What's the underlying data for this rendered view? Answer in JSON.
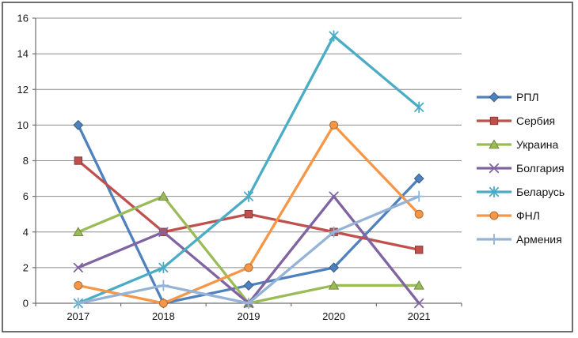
{
  "chart_data": {
    "type": "line",
    "categories": [
      "2017",
      "2018",
      "2019",
      "2020",
      "2021"
    ],
    "series": [
      {
        "name": "РПЛ",
        "values": [
          10,
          0,
          1,
          2,
          7
        ],
        "color": "#4F81BD",
        "marker": "diamond"
      },
      {
        "name": "Сербия",
        "values": [
          8,
          4,
          5,
          4,
          3
        ],
        "color": "#C0504D",
        "marker": "square"
      },
      {
        "name": "Украина",
        "values": [
          4,
          6,
          0,
          1,
          1
        ],
        "color": "#9BBB59",
        "marker": "triangle"
      },
      {
        "name": "Болгария",
        "values": [
          2,
          4,
          0,
          6,
          0
        ],
        "color": "#8064A2",
        "marker": "x"
      },
      {
        "name": "Беларусь",
        "values": [
          0,
          2,
          6,
          15,
          11
        ],
        "color": "#4BACC6",
        "marker": "star"
      },
      {
        "name": "ФНЛ",
        "values": [
          1,
          0,
          2,
          10,
          5
        ],
        "color": "#F79646",
        "marker": "circle"
      },
      {
        "name": "Армения",
        "values": [
          0,
          1,
          0,
          4,
          6
        ],
        "color": "#95B3D7",
        "marker": "plus"
      }
    ],
    "title": "",
    "xlabel": "",
    "ylabel": "",
    "ylim": [
      0,
      16
    ],
    "yticks": [
      0,
      2,
      4,
      6,
      8,
      10,
      12,
      14,
      16
    ],
    "grid": true,
    "legend_position": "right"
  },
  "colors": {
    "background": "#FFFFFF",
    "gridline": "#8C8C8C",
    "axis": "#6F6F6F",
    "text": "#151515",
    "border": "#4A4A4A"
  }
}
